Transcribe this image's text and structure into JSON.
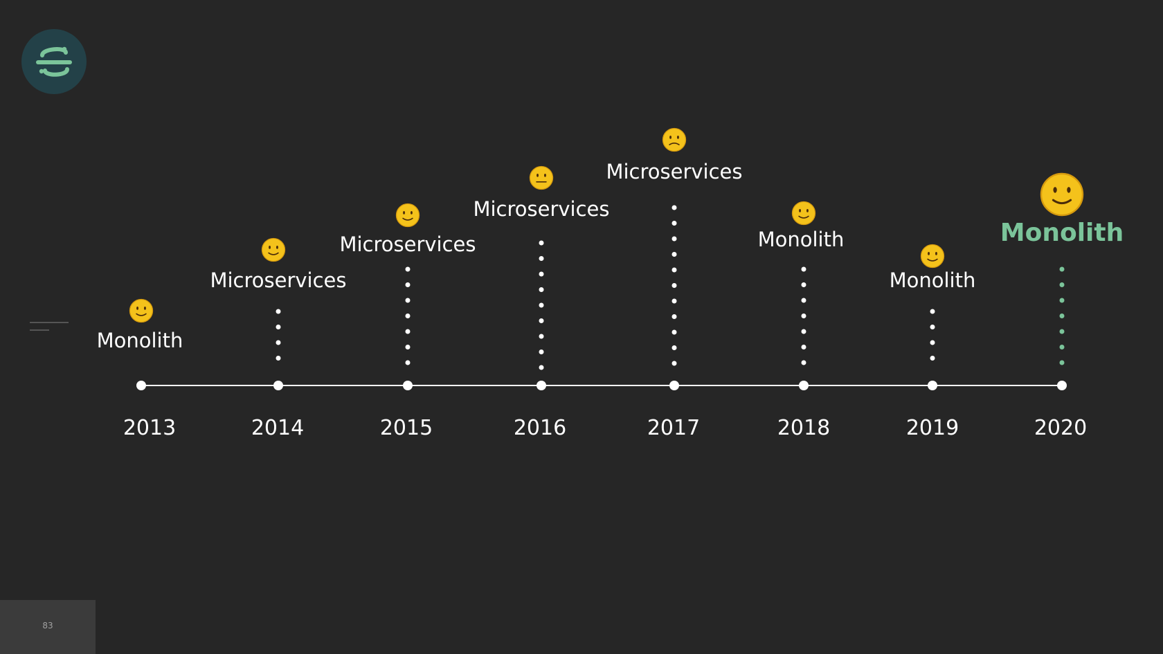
{
  "slide": {
    "page_number": "83",
    "accent_color": "#7bc49a",
    "background_color": "#262626",
    "logo_icon": "sentry-logo-icon"
  },
  "timeline": {
    "points": [
      {
        "year": "2013",
        "label": "Monolith",
        "mood": "slightly-smiling-face",
        "highlight": false
      },
      {
        "year": "2014",
        "label": "Microservices",
        "mood": "slightly-smiling-face",
        "highlight": false
      },
      {
        "year": "2015",
        "label": "Microservices",
        "mood": "slightly-smiling-face",
        "highlight": false
      },
      {
        "year": "2016",
        "label": "Microservices",
        "mood": "neutral-face",
        "highlight": false
      },
      {
        "year": "2017",
        "label": "Microservices",
        "mood": "slightly-frowning-face",
        "highlight": false
      },
      {
        "year": "2018",
        "label": "Monolith",
        "mood": "slightly-smiling-face",
        "highlight": false
      },
      {
        "year": "2019",
        "label": "Monolith",
        "mood": "slightly-smiling-face",
        "highlight": false
      },
      {
        "year": "2020",
        "label": "Monolith",
        "mood": "slightly-smiling-face",
        "highlight": true
      }
    ]
  }
}
